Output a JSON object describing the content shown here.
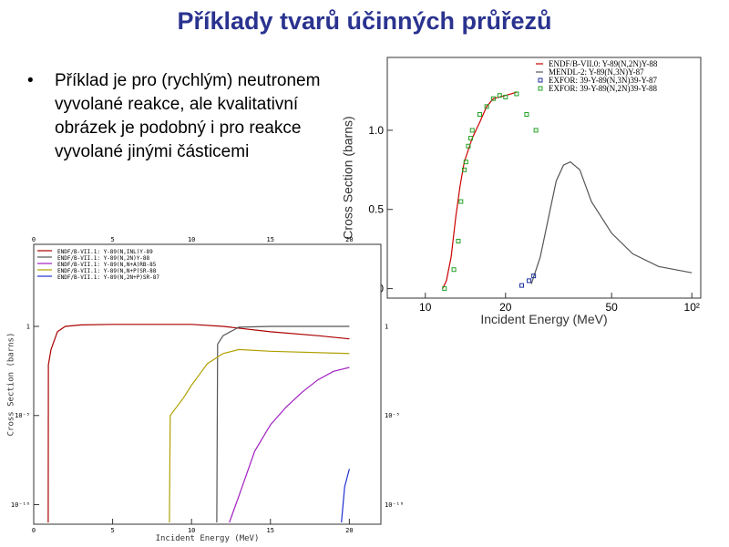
{
  "title": "Příklady tvarů účinných průřezů",
  "bullet": "Příklad je pro (rychlým) neutronem vyvolané reakce, ale kvalitativní obrázek je podobný i pro reakce vyvolané jinými částicemi",
  "chart_data": [
    {
      "type": "line",
      "xlabel": "Incident Energy (MeV)",
      "ylabel": "Cross Section (barns)",
      "xscale": "log",
      "xlim": [
        7.2,
        108
      ],
      "xticks": [
        10,
        20,
        50,
        {
          "value": 100,
          "label": "10²"
        }
      ],
      "ylim": [
        -0.06,
        1.46
      ],
      "yticks": [
        0,
        0.5,
        {
          "value": 1,
          "label": "1.0"
        }
      ],
      "legend": "upper right",
      "series": [
        {
          "name": "ENDF/B-VII.0: Y-89(N,2N)Y-88",
          "color": "#cc0000",
          "style": "line",
          "x": [
            11.6,
            12,
            12.5,
            13,
            13.5,
            14,
            15,
            16,
            17,
            18,
            20,
            22
          ],
          "values": [
            0,
            0.05,
            0.2,
            0.45,
            0.65,
            0.8,
            0.95,
            1.05,
            1.15,
            1.2,
            1.22,
            1.24
          ]
        },
        {
          "name": "MENDL-2: Y-89(N,3N)Y-87",
          "color": "#555555",
          "style": "line",
          "x": [
            25,
            27,
            29,
            31,
            33,
            35,
            38,
            42,
            50,
            60,
            75,
            100
          ],
          "values": [
            0.03,
            0.2,
            0.45,
            0.68,
            0.78,
            0.8,
            0.75,
            0.55,
            0.35,
            0.22,
            0.14,
            0.1
          ]
        },
        {
          "name": "EXFOR: 39-Y-89(N,3N)39-Y-87",
          "color": "#1a2f9e",
          "style": "markers",
          "x": [
            23,
            24.5,
            25.5
          ],
          "values": [
            0.02,
            0.05,
            0.08
          ]
        },
        {
          "name": "EXFOR: 39-Y-89(N,2N)39-Y-88",
          "color": "#22a022",
          "style": "markers",
          "x": [
            11.8,
            12.8,
            13.3,
            13.6,
            14,
            14.2,
            14.5,
            14.8,
            15,
            16,
            17,
            18,
            19,
            20,
            22,
            24,
            26
          ],
          "values": [
            0,
            0.12,
            0.3,
            0.55,
            0.75,
            0.8,
            0.9,
            0.95,
            1.0,
            1.1,
            1.15,
            1.2,
            1.22,
            1.21,
            1.23,
            1.1,
            1.0
          ]
        }
      ]
    },
    {
      "type": "line",
      "xlabel": "Incident Energy (MeV)",
      "ylabel": "Cross Section (barns)",
      "xlim": [
        0,
        22
      ],
      "xticks": [
        0,
        5,
        10,
        15,
        20
      ],
      "yscale": "log",
      "ylim": [
        8e-12,
        40000
      ],
      "yticks": [
        1,
        {
          "value": 1e-05,
          "label": "10⁻⁵"
        },
        {
          "value": 1e-10,
          "label": "10⁻¹⁰"
        }
      ],
      "legend": "upper left",
      "series": [
        {
          "name": "ENDF/B-VII.1: Y-89(N,INL)Y-89",
          "color": "#aa0000",
          "style": "line",
          "x": [
            0.92,
            0.93,
            1.1,
            1.5,
            2,
            3,
            5,
            10,
            12,
            15,
            18,
            20
          ],
          "values": [
            1e-11,
            0.007,
            0.05,
            0.5,
            1,
            1.2,
            1.3,
            1.3,
            1.0,
            0.5,
            0.3,
            0.2
          ]
        },
        {
          "name": "ENDF/B-VII.1: Y-89(N,2N)Y-88",
          "color": "#555555",
          "style": "line",
          "x": [
            11.6,
            11.65,
            12,
            13,
            15,
            20
          ],
          "values": [
            1e-11,
            0.1,
            0.3,
            0.9,
            1,
            1
          ]
        },
        {
          "name": "ENDF/B-VII.1: Y-89(N,N+A)RB-85",
          "color": "#a020c0",
          "style": "line",
          "x": [
            12.4,
            13,
            14,
            15,
            16,
            17,
            18,
            19,
            20
          ],
          "values": [
            1e-11,
            3e-10,
            1e-07,
            3e-06,
            3e-05,
            0.0002,
            0.001,
            0.003,
            0.005
          ]
        },
        {
          "name": "ENDF/B-VII.1: Y-89(N,N+P)SR-88",
          "color": "#b0a000",
          "style": "line",
          "x": [
            8.6,
            8.65,
            9.5,
            10,
            10.5,
            11,
            12,
            13,
            15,
            20
          ],
          "values": [
            1e-11,
            1e-05,
            0.0001,
            0.0005,
            0.002,
            0.008,
            0.03,
            0.05,
            0.04,
            0.03
          ]
        },
        {
          "name": "ENDF/B-VII.1: Y-89(N,2N+P)SR-87",
          "color": "#2030d0",
          "style": "line",
          "x": [
            19.5,
            19.7,
            20
          ],
          "values": [
            1e-11,
            1e-09,
            1e-08
          ]
        }
      ]
    }
  ]
}
